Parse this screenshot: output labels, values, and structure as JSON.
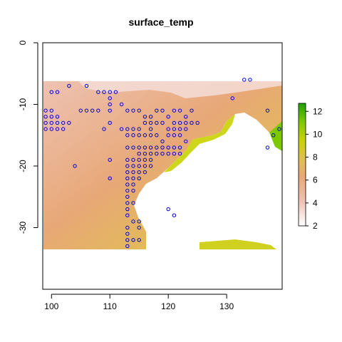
{
  "chart_data": {
    "type": "heatmap",
    "title": "surface_temp",
    "xlabel": "",
    "ylabel": "",
    "xlim": [
      98.5,
      139.5
    ],
    "ylim": [
      -40,
      0
    ],
    "x_ticks": [
      100,
      110,
      120,
      130
    ],
    "y_ticks": [
      0,
      -10,
      -20,
      -30
    ],
    "colorbar": {
      "range": [
        2,
        12.7
      ],
      "ticks": [
        2,
        4,
        6,
        8,
        10,
        12
      ],
      "colors": [
        "#ffffff",
        "#eec2b3",
        "#e8a877",
        "#e0c050",
        "#c8d200",
        "#7ec800",
        "#1ea000"
      ]
    },
    "grid": false,
    "legend": "colorbar right",
    "points": {
      "marker": "open-circle",
      "color": "#0000cc",
      "xy": [
        [
          100,
          -8
        ],
        [
          101,
          -8
        ],
        [
          103,
          -7
        ],
        [
          106,
          -7
        ],
        [
          108,
          -8
        ],
        [
          109,
          -8
        ],
        [
          110,
          -8
        ],
        [
          111,
          -8
        ],
        [
          133,
          -6
        ],
        [
          134,
          -6
        ],
        [
          99,
          -11
        ],
        [
          100,
          -11
        ],
        [
          105,
          -11
        ],
        [
          106,
          -11
        ],
        [
          107,
          -11
        ],
        [
          108,
          -11
        ],
        [
          110,
          -9
        ],
        [
          110,
          -10
        ],
        [
          110,
          -11
        ],
        [
          112,
          -10
        ],
        [
          113,
          -11
        ],
        [
          114,
          -11
        ],
        [
          115,
          -11
        ],
        [
          116,
          -12
        ],
        [
          117,
          -12
        ],
        [
          118,
          -11
        ],
        [
          119,
          -11
        ],
        [
          120,
          -12
        ],
        [
          121,
          -11
        ],
        [
          122,
          -11
        ],
        [
          123,
          -12
        ],
        [
          124,
          -11
        ],
        [
          131,
          -9
        ],
        [
          137,
          -11
        ],
        [
          99,
          -12
        ],
        [
          100,
          -12
        ],
        [
          101,
          -12
        ],
        [
          99,
          -13
        ],
        [
          100,
          -13
        ],
        [
          101,
          -13
        ],
        [
          102,
          -13
        ],
        [
          103,
          -13
        ],
        [
          99,
          -14
        ],
        [
          100,
          -14
        ],
        [
          101,
          -14
        ],
        [
          102,
          -14
        ],
        [
          109,
          -14
        ],
        [
          110,
          -13
        ],
        [
          112,
          -14
        ],
        [
          113,
          -14
        ],
        [
          114,
          -14
        ],
        [
          115,
          -14
        ],
        [
          116,
          -13
        ],
        [
          117,
          -13
        ],
        [
          117,
          -14
        ],
        [
          118,
          -13
        ],
        [
          119,
          -13
        ],
        [
          120,
          -14
        ],
        [
          121,
          -13
        ],
        [
          122,
          -13
        ],
        [
          123,
          -13
        ],
        [
          124,
          -13
        ],
        [
          125,
          -13
        ],
        [
          121,
          -14
        ],
        [
          122,
          -14
        ],
        [
          123,
          -14
        ],
        [
          139,
          -14
        ],
        [
          113,
          -15
        ],
        [
          114,
          -15
        ],
        [
          115,
          -15
        ],
        [
          116,
          -15
        ],
        [
          117,
          -15
        ],
        [
          118,
          -15
        ],
        [
          119,
          -16
        ],
        [
          120,
          -15
        ],
        [
          121,
          -15
        ],
        [
          122,
          -15
        ],
        [
          123,
          -16
        ],
        [
          138,
          -15
        ],
        [
          113,
          -17
        ],
        [
          114,
          -17
        ],
        [
          115,
          -17
        ],
        [
          116,
          -17
        ],
        [
          117,
          -17
        ],
        [
          118,
          -17
        ],
        [
          119,
          -17
        ],
        [
          120,
          -17
        ],
        [
          121,
          -17
        ],
        [
          122,
          -17
        ],
        [
          115,
          -18
        ],
        [
          116,
          -18
        ],
        [
          117,
          -18
        ],
        [
          118,
          -18
        ],
        [
          119,
          -18
        ],
        [
          120,
          -18
        ],
        [
          121,
          -18
        ],
        [
          122,
          -18
        ],
        [
          113,
          -19
        ],
        [
          114,
          -19
        ],
        [
          115,
          -19
        ],
        [
          116,
          -19
        ],
        [
          117,
          -19
        ],
        [
          110,
          -19
        ],
        [
          113,
          -20
        ],
        [
          114,
          -20
        ],
        [
          115,
          -20
        ],
        [
          116,
          -20
        ],
        [
          117,
          -20
        ],
        [
          104,
          -20
        ],
        [
          113,
          -21
        ],
        [
          114,
          -21
        ],
        [
          115,
          -21
        ],
        [
          116,
          -21
        ],
        [
          113,
          -22
        ],
        [
          114,
          -22
        ],
        [
          115,
          -22
        ],
        [
          110,
          -22
        ],
        [
          113,
          -23
        ],
        [
          114,
          -23
        ],
        [
          113,
          -24
        ],
        [
          114,
          -24
        ],
        [
          113,
          -25
        ],
        [
          113,
          -26
        ],
        [
          114,
          -26
        ],
        [
          113,
          -27
        ],
        [
          113,
          -28
        ],
        [
          120,
          -27
        ],
        [
          121,
          -28
        ],
        [
          114,
          -29
        ],
        [
          115,
          -29
        ],
        [
          113,
          -30
        ],
        [
          115,
          -30
        ],
        [
          113,
          -31
        ],
        [
          113,
          -32
        ],
        [
          114,
          -32
        ],
        [
          115,
          -32
        ],
        [
          113,
          -33
        ],
        [
          137,
          -17
        ]
      ]
    }
  }
}
